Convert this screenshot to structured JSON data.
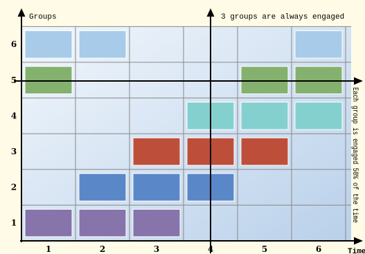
{
  "y_axis_label": "Groups",
  "x_axis_label": "Time",
  "top_annotation": "3 groups are always engaged",
  "side_annotation": "Each group is engaged 50% of the time",
  "time_labels": [
    "1",
    "2",
    "3",
    "4",
    "5",
    "6"
  ],
  "group_labels": [
    "1",
    "2",
    "3",
    "4",
    "5",
    "6"
  ],
  "colors": {
    "background": "#fffbe6",
    "grid_line": "#888888",
    "axis": "#000000",
    "group_1": "#8674aa",
    "group_2": "#5a87c8",
    "group_3": "#bd4f3a",
    "group_4": "#84d0cf",
    "group_5": "#85b16f",
    "group_6": "#a7cbe9"
  },
  "engagement": [
    {
      "group": 1,
      "times": [
        1,
        2,
        3
      ]
    },
    {
      "group": 2,
      "times": [
        2,
        3,
        4
      ]
    },
    {
      "group": 3,
      "times": [
        3,
        4,
        5
      ]
    },
    {
      "group": 4,
      "times": [
        4,
        5,
        6
      ]
    },
    {
      "group": 5,
      "times": [
        1,
        5,
        6
      ]
    },
    {
      "group": 6,
      "times": [
        1,
        2,
        6
      ]
    }
  ]
}
